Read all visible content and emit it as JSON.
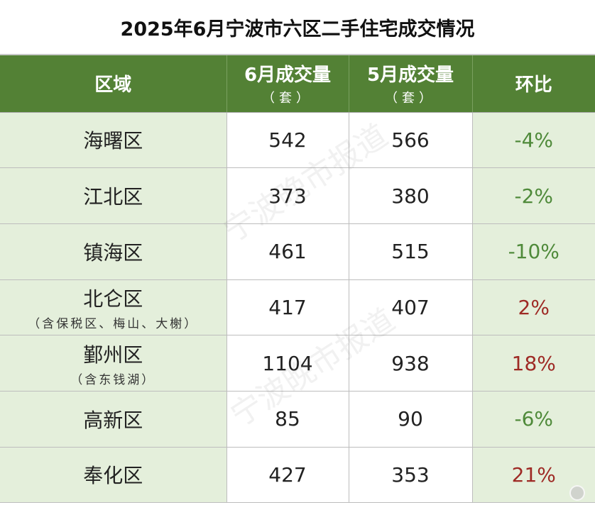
{
  "title": "2025年6月宁波市六区二手住宅成交情况",
  "header": {
    "region": "区域",
    "june": "6月成交量",
    "june_unit": "（套）",
    "may": "5月成交量",
    "may_unit": "（套）",
    "change": "环比"
  },
  "rows": [
    {
      "region": "海曙区",
      "sub": "",
      "june": "542",
      "may": "566",
      "change": "-4%",
      "trend": "down"
    },
    {
      "region": "江北区",
      "sub": "",
      "june": "373",
      "may": "380",
      "change": "-2%",
      "trend": "down"
    },
    {
      "region": "镇海区",
      "sub": "",
      "june": "461",
      "may": "515",
      "change": "-10%",
      "trend": "down"
    },
    {
      "region": "北仑区",
      "sub": "（含保税区、梅山、大榭）",
      "june": "417",
      "may": "407",
      "change": "2%",
      "trend": "up"
    },
    {
      "region": "鄞州区",
      "sub": "（含东钱湖）",
      "june": "1104",
      "may": "938",
      "change": "18%",
      "trend": "up"
    },
    {
      "region": "高新区",
      "sub": "",
      "june": "85",
      "may": "90",
      "change": "-6%",
      "trend": "down"
    },
    {
      "region": "奉化区",
      "sub": "",
      "june": "427",
      "may": "353",
      "change": "21%",
      "trend": "up"
    }
  ],
  "watermark": "宁波晚市报道",
  "colors": {
    "header_green": "#538135",
    "row_green": "#e4efdb",
    "down": "#4f8a3a",
    "up": "#9e2a25"
  }
}
